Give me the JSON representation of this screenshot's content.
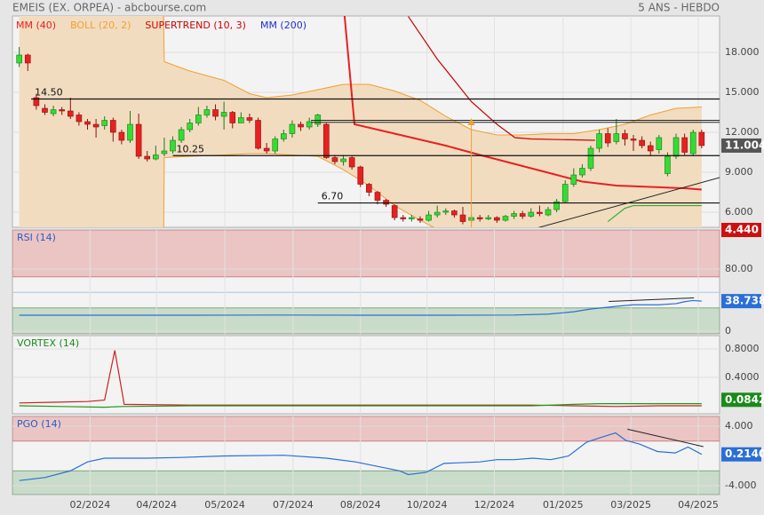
{
  "header": {
    "title": "EMEIS (EX. ORPEA) - abcbourse.com",
    "period": "5 ANS - HEBDO"
  },
  "chart_data": [
    {
      "type": "candlestick",
      "xlim": [
        -0.8,
        82.1
      ],
      "ylim": [
        4.87,
        20.73
      ],
      "grid": true,
      "yticks": [
        {
          "value": 18,
          "label": "18.000"
        },
        {
          "value": 15,
          "label": "15.000"
        },
        {
          "value": 12,
          "label": "12.000"
        },
        {
          "value": 9,
          "label": "9.000"
        },
        {
          "value": 6,
          "label": "6.000"
        }
      ],
      "up_color": "#33dd33",
      "down_color": "#e82020",
      "open": [
        17.2,
        17.8,
        14.6,
        13.8,
        13.4,
        13.7,
        13.6,
        13.3,
        12.8,
        12.6,
        12.5,
        12.9,
        12.0,
        11.4,
        12.6,
        10.2,
        10.0,
        10.4,
        10.6,
        11.4,
        12.2,
        12.7,
        13.3,
        13.7,
        13.2,
        13.5,
        12.7,
        13.1,
        12.9,
        10.8,
        10.6,
        11.5,
        11.9,
        12.6,
        12.4,
        12.6,
        12.6,
        10.1,
        9.8,
        10.1,
        9.4,
        8.1,
        7.5,
        6.9,
        6.5,
        5.6,
        5.5,
        5.5,
        5.4,
        5.8,
        6.0,
        6.1,
        5.8,
        5.4,
        5.6,
        5.5,
        5.6,
        5.4,
        5.7,
        5.9,
        5.7,
        6.0,
        5.8,
        6.2,
        6.8,
        8.1,
        8.8,
        9.3,
        10.8,
        11.9,
        11.3,
        11.9,
        11.5,
        11.4,
        11.0,
        10.7,
        8.9,
        10.2,
        11.6,
        10.4,
        12.0
      ],
      "close": [
        17.8,
        17.2,
        14.0,
        13.5,
        13.7,
        13.6,
        13.2,
        12.8,
        12.6,
        12.4,
        12.9,
        12.0,
        11.4,
        12.6,
        10.2,
        10.0,
        10.3,
        10.6,
        11.4,
        12.2,
        12.7,
        13.3,
        13.7,
        13.2,
        13.5,
        12.7,
        13.1,
        12.9,
        10.8,
        10.6,
        11.5,
        11.9,
        12.6,
        12.4,
        12.8,
        13.3,
        10.1,
        9.8,
        10.0,
        9.4,
        8.1,
        7.5,
        6.9,
        6.6,
        5.6,
        5.5,
        5.6,
        5.4,
        5.8,
        6.0,
        6.1,
        5.8,
        5.3,
        5.6,
        5.5,
        5.6,
        5.4,
        5.7,
        5.9,
        5.7,
        6.0,
        5.9,
        6.2,
        6.8,
        8.1,
        8.8,
        9.3,
        10.8,
        11.9,
        11.2,
        11.9,
        11.5,
        11.4,
        11.0,
        10.6,
        11.6,
        10.2,
        11.6,
        10.5,
        12.0,
        11.004
      ],
      "high": [
        18.4,
        17.9,
        14.9,
        14.1,
        14.0,
        13.9,
        14.6,
        13.5,
        13.0,
        13.0,
        13.2,
        13.1,
        12.2,
        13.6,
        13.4,
        10.6,
        11.0,
        11.6,
        11.7,
        12.4,
        13.0,
        13.9,
        14.0,
        14.1,
        14.3,
        13.6,
        13.5,
        13.4,
        13.1,
        11.2,
        11.7,
        12.2,
        12.9,
        12.8,
        13.1,
        13.4,
        12.7,
        10.3,
        10.3,
        10.2,
        9.5,
        8.2,
        7.6,
        7.0,
        6.6,
        5.8,
        5.8,
        5.7,
        6.1,
        6.5,
        6.3,
        6.2,
        6.4,
        5.8,
        5.8,
        5.8,
        5.7,
        5.8,
        6.1,
        6.1,
        6.3,
        6.5,
        6.4,
        7.0,
        8.4,
        9.3,
        9.6,
        11.0,
        12.2,
        12.3,
        13.0,
        12.2,
        11.8,
        11.7,
        11.3,
        11.8,
        10.5,
        11.9,
        11.9,
        12.2,
        12.2
      ],
      "low": [
        16.9,
        16.6,
        13.7,
        13.3,
        13.2,
        13.3,
        13.0,
        12.5,
        12.2,
        11.6,
        12.2,
        11.3,
        11.1,
        11.2,
        10.0,
        9.8,
        9.9,
        10.2,
        10.4,
        11.2,
        12.0,
        12.5,
        13.1,
        12.9,
        12.2,
        12.3,
        12.7,
        12.7,
        10.7,
        10.4,
        10.4,
        11.3,
        11.6,
        12.1,
        12.2,
        12.4,
        10.0,
        9.6,
        9.5,
        9.2,
        7.9,
        7.2,
        6.6,
        6.4,
        5.4,
        5.3,
        5.3,
        5.2,
        5.3,
        5.6,
        5.8,
        5.6,
        5.1,
        5.2,
        5.3,
        5.4,
        5.2,
        5.3,
        5.5,
        5.5,
        5.6,
        5.7,
        5.7,
        6.0,
        6.7,
        7.9,
        8.6,
        9.1,
        10.5,
        10.9,
        11.1,
        11.0,
        10.6,
        10.8,
        10.2,
        10.4,
        8.7,
        10.0,
        10.3,
        10.2,
        10.8
      ],
      "bands": {
        "name": "BOLL (20, 2)",
        "color": "#f0a030",
        "fill": "#f2dcc0",
        "x": [
          0,
          16.9,
          17,
          20,
          24,
          27,
          29,
          32,
          35,
          38,
          41,
          44,
          47,
          50,
          53,
          56,
          59,
          62,
          65,
          68,
          71,
          74,
          77,
          80
        ],
        "upper": [
          21.5,
          21.5,
          17.3,
          16.6,
          15.9,
          14.9,
          14.6,
          14.8,
          15.2,
          15.6,
          15.6,
          15.1,
          14.4,
          13.2,
          12.2,
          11.8,
          11.8,
          11.9,
          11.9,
          12.2,
          12.6,
          13.3,
          13.8,
          13.9
        ],
        "lower": [
          2.5,
          2.5,
          10.1,
          10.2,
          10.3,
          10.4,
          10.4,
          10.3,
          10.2,
          9.2,
          8.0,
          6.5,
          5.4,
          4.4,
          3.9,
          3.6,
          3.6,
          3.7,
          3.8,
          3.9,
          4.0,
          4.0,
          4.1,
          4.44
        ]
      },
      "overlays": [
        {
          "name": "MM (40)",
          "color": "#e82020",
          "width": 2,
          "x": [
            38.1,
            39.3,
            42,
            46,
            50,
            54,
            57,
            60,
            63,
            66,
            70,
            74,
            78,
            80
          ],
          "values": [
            21.0,
            12.6,
            12.2,
            11.6,
            11.0,
            10.3,
            9.8,
            9.3,
            8.8,
            8.3,
            8.0,
            7.9,
            7.8,
            7.7
          ]
        },
        {
          "name": "SUPERTREND (10, 3)",
          "color": "#cc0000",
          "width": 1.2,
          "piece_colors": [
            "#cc0000",
            "#33aa33"
          ],
          "x": [
            45.6,
            49,
            53,
            56,
            58.1,
            60,
            67.5,
            68,
            69,
            71,
            72,
            80
          ],
          "values": [
            20.7,
            17.5,
            14.3,
            12.6,
            11.6,
            11.5,
            11.4,
            null,
            5.3,
            6.3,
            6.5,
            6.5
          ]
        },
        {
          "name": "MM (200)",
          "color": "#2030d0",
          "width": 1.2,
          "x": [],
          "values": []
        }
      ],
      "levels": [
        {
          "value": 14.5,
          "label": "14.50",
          "x": 1.4
        },
        {
          "value": 10.25,
          "x": 18
        },
        {
          "value": 6.7,
          "label": "6.70",
          "x": 35
        }
      ],
      "lines": [
        {
          "x": [
            34.2,
            82.1
          ],
          "values": [
            12.9,
            12.9
          ],
          "color": "#222222"
        },
        {
          "x": [
            34.2,
            82.1
          ],
          "values": [
            12.75,
            12.75
          ],
          "color": "#222222"
        },
        {
          "x": [
            57.6,
            82.1
          ],
          "values": [
            4.27,
            8.6
          ],
          "color": "#222222"
        },
        {
          "x": [
            53,
            53
          ],
          "values": [
            4.6,
            12.8
          ],
          "color": "#f0a030",
          "arrow": true
        }
      ],
      "last_values": [
        {
          "value": 11.004,
          "color": "#555555"
        },
        {
          "value": 4.44,
          "label": "4.440",
          "color": "#cc1010"
        }
      ]
    },
    {
      "type": "line",
      "title": "RSI (14)",
      "title_color": "#2a5cc0",
      "xlim": [
        -0.8,
        82.1
      ],
      "ylim": [
        -3.4,
        130.3
      ],
      "yticks": [
        {
          "value": 80,
          "label": "80.00"
        },
        0
      ],
      "zones": {
        "upper": 70,
        "lower": 30
      },
      "level": 50,
      "series": [
        {
          "color": "#2a6fd6",
          "x": [
            0,
            10,
            20,
            30,
            40,
            50,
            58,
            62,
            65,
            67,
            70,
            72,
            75,
            77,
            78,
            79,
            80
          ],
          "values": [
            20.6,
            20.6,
            20.6,
            20.8,
            20.6,
            20.6,
            20.8,
            22,
            25,
            28.6,
            32,
            34,
            34,
            35.5,
            38,
            39.5,
            38.738
          ]
        }
      ],
      "lines": [
        {
          "x": [
            69.1,
            79.1
          ],
          "values": [
            38.3,
            42.9
          ],
          "color": "#222222"
        }
      ],
      "last_values": [
        {
          "value": 38.738,
          "color": "#2a6fd6"
        }
      ]
    },
    {
      "type": "line",
      "title": "VORTEX (14)",
      "title_color": "#1a8a1a",
      "xlim": [
        -0.8,
        82.1
      ],
      "ylim": [
        -0.1125,
        0.9875
      ],
      "yticks": [
        {
          "value": 0.8,
          "label": "0.8000"
        },
        {
          "value": 0.4,
          "label": "0.4000"
        }
      ],
      "series": [
        {
          "color": "#cc2020",
          "x": [
            0,
            4,
            8,
            10,
            11.2,
            12.3,
            20,
            30,
            40,
            50,
            60,
            65,
            70,
            75,
            80
          ],
          "values": [
            0.04,
            0.05,
            0.06,
            0.08,
            0.78,
            0.02,
            0.01,
            0.01,
            0.01,
            0.01,
            0.01,
            0.0,
            -0.01,
            0.0,
            0.0
          ]
        },
        {
          "color": "#1a9a1a",
          "x": [
            0,
            5,
            10,
            12,
            20,
            30,
            40,
            50,
            60,
            65,
            68,
            72,
            80
          ],
          "values": [
            0.0,
            -0.01,
            -0.02,
            -0.01,
            0.0,
            0.0,
            0.0,
            0.0,
            0.0,
            0.02,
            0.03,
            0.03,
            0.03
          ]
        }
      ],
      "last_values": [
        {
          "value": 0.0842,
          "color": "#1a8a1a"
        }
      ]
    },
    {
      "type": "line",
      "title": "PGO (14)",
      "title_color": "#2a5cc0",
      "xlim": [
        -0.8,
        82.1
      ],
      "ylim": [
        -5.19,
        5.31
      ],
      "yticks": [
        {
          "value": 4,
          "label": "4.000"
        },
        {
          "value": -4,
          "label": "-4.000"
        }
      ],
      "zones": {
        "upper": 2,
        "lower": -2
      },
      "xticks": [
        {
          "value": 8.3,
          "label": "02/2024"
        },
        {
          "value": 16.1,
          "label": "04/2024"
        },
        {
          "value": 24.1,
          "label": "05/2024"
        },
        {
          "value": 32.1,
          "label": "07/2024"
        },
        {
          "value": 40,
          "label": "08/2024"
        },
        {
          "value": 47.8,
          "label": "10/2024"
        },
        {
          "value": 55.7,
          "label": "12/2024"
        },
        {
          "value": 63.75,
          "label": "01/2025"
        },
        {
          "value": 71.7,
          "label": "03/2025"
        },
        {
          "value": 79.6,
          "label": "04/2025"
        }
      ],
      "series": [
        {
          "color": "#2a6fd6",
          "x": [
            0,
            3,
            6,
            8,
            10,
            15,
            19,
            24,
            31,
            36,
            39.4,
            44.6,
            45.6,
            47.7,
            49.8,
            54,
            56,
            58,
            60.2,
            62.3,
            64.4,
            66.5,
            68.5,
            69.9,
            71.1,
            72.7,
            74.8,
            76.9,
            78.4,
            80
          ],
          "values": [
            -3.3,
            -2.9,
            -2.0,
            -0.8,
            -0.3,
            -0.3,
            -0.2,
            0.0,
            0.1,
            -0.3,
            -0.8,
            -2.0,
            -2.5,
            -2.2,
            -1.0,
            -0.8,
            -0.5,
            -0.5,
            -0.3,
            -0.5,
            0.0,
            1.85,
            2.6,
            3.1,
            2.1,
            1.6,
            0.6,
            0.4,
            1.2,
            0.214
          ]
        }
      ],
      "lines": [
        {
          "x": [
            71.3,
            80.2
          ],
          "values": [
            3.6,
            1.25
          ],
          "color": "#222222"
        }
      ],
      "last_values": [
        {
          "value": 0.214,
          "label": "0.2140",
          "color": "#2a6fd6"
        }
      ]
    }
  ]
}
